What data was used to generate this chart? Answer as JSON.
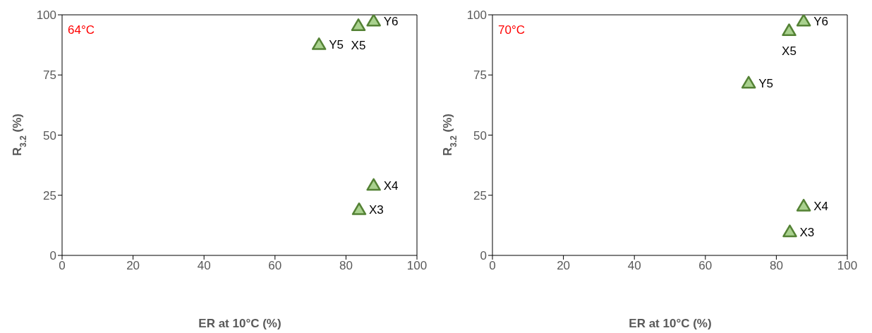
{
  "chart_data": [
    {
      "type": "scatter",
      "title": "64°C",
      "xlabel": "ER at 10°C (%)",
      "ylabel": "R$_{3.2}$ (%)",
      "x": [
        72.4,
        83.5,
        87.8,
        87.8,
        83.7
      ],
      "series": [
        {
          "color": "#a9d18e",
          "values": [
            87.6,
            95.5,
            97.4,
            29.1,
            19.0
          ]
        }
      ],
      "marker": "triangle",
      "xlim": [
        0,
        100
      ],
      "xticks": [
        0,
        20,
        40,
        60,
        80,
        100
      ],
      "ylim": [
        0,
        100
      ],
      "yticks": [
        0,
        25,
        50,
        75,
        100
      ],
      "grid": false,
      "legend": false,
      "annotations": [
        {
          "text": "Y5",
          "x": 72.4,
          "y": 87.6
        },
        {
          "text": "X5",
          "x": 83.5,
          "y": 95.5
        },
        {
          "text": "Y6",
          "x": 87.8,
          "y": 97.4
        },
        {
          "text": "X4",
          "x": 87.8,
          "y": 29.1
        },
        {
          "text": "X3",
          "x": 83.7,
          "y": 19.0
        }
      ]
    },
    {
      "type": "scatter",
      "title": "70°C",
      "xlabel": "ER at 10°C (%)",
      "ylabel": "R$_{3.2}$ (%)",
      "x": [
        72.2,
        83.6,
        87.7,
        87.7,
        83.8
      ],
      "series": [
        {
          "color": "#a9d18e",
          "values": [
            71.6,
            93.4,
            97.4,
            20.5,
            9.8
          ]
        }
      ],
      "marker": "triangle",
      "xlim": [
        0,
        100
      ],
      "xticks": [
        0,
        20,
        40,
        60,
        80,
        100
      ],
      "ylim": [
        0,
        100
      ],
      "yticks": [
        0,
        25,
        50,
        75,
        100
      ],
      "grid": false,
      "legend": false,
      "annotations": [
        {
          "text": "Y5",
          "x": 72.2,
          "y": 71.6
        },
        {
          "text": "X5",
          "x": 83.6,
          "y": 93.4
        },
        {
          "text": "Y6",
          "x": 87.7,
          "y": 97.4
        },
        {
          "text": "X4",
          "x": 87.7,
          "y": 20.5
        },
        {
          "text": "X3",
          "x": 83.8,
          "y": 9.8
        }
      ]
    }
  ]
}
